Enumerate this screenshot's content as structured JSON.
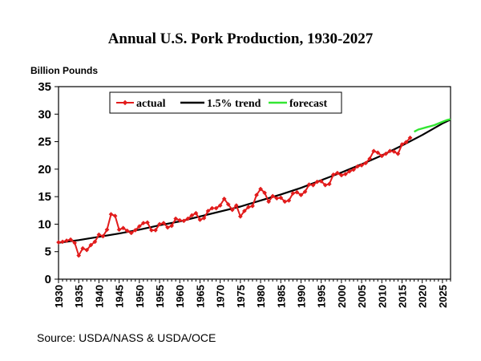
{
  "chart_data": {
    "type": "line",
    "title": "Annual U.S. Pork Production, 1930-2027",
    "ylabel": "Billion  Pounds",
    "xlabel": "",
    "source": "Source: USDA/NASS & USDA/OCE",
    "xlim": [
      1930,
      2027
    ],
    "ylim": [
      0,
      35
    ],
    "y_ticks": [
      0,
      5,
      10,
      15,
      20,
      25,
      30,
      35
    ],
    "x_ticks": [
      1930,
      1935,
      1940,
      1945,
      1950,
      1955,
      1960,
      1965,
      1970,
      1975,
      1980,
      1985,
      1990,
      1995,
      2000,
      2005,
      2010,
      2015,
      2020,
      2025
    ],
    "grid": false,
    "legend": {
      "placement": "top",
      "entries": [
        "actual",
        "1.5% trend",
        "forecast"
      ]
    },
    "series": [
      {
        "name": "actual",
        "color": "#e21c1c",
        "marker": "diamond",
        "x": [
          1930,
          1931,
          1932,
          1933,
          1934,
          1935,
          1936,
          1937,
          1938,
          1939,
          1940,
          1941,
          1942,
          1943,
          1944,
          1945,
          1946,
          1947,
          1948,
          1949,
          1950,
          1951,
          1952,
          1953,
          1954,
          1955,
          1956,
          1957,
          1958,
          1959,
          1960,
          1961,
          1962,
          1963,
          1964,
          1965,
          1966,
          1967,
          1968,
          1969,
          1970,
          1971,
          1972,
          1973,
          1974,
          1975,
          1976,
          1977,
          1978,
          1979,
          1980,
          1981,
          1982,
          1983,
          1984,
          1985,
          1986,
          1987,
          1988,
          1989,
          1990,
          1991,
          1992,
          1993,
          1994,
          1995,
          1996,
          1997,
          1998,
          1999,
          2000,
          2001,
          2002,
          2003,
          2004,
          2005,
          2006,
          2007,
          2008,
          2009,
          2010,
          2011,
          2012,
          2013,
          2014,
          2015,
          2016,
          2017
        ],
        "y": [
          6.7,
          6.8,
          7.0,
          7.2,
          6.6,
          4.3,
          5.6,
          5.3,
          6.2,
          6.8,
          8.1,
          7.8,
          9.0,
          11.8,
          11.5,
          9.0,
          9.3,
          8.8,
          8.4,
          8.9,
          9.6,
          10.2,
          10.3,
          8.9,
          8.9,
          10.0,
          10.2,
          9.4,
          9.7,
          11.0,
          10.7,
          10.6,
          11.0,
          11.6,
          12.0,
          10.8,
          11.1,
          12.4,
          12.9,
          12.9,
          13.4,
          14.6,
          13.6,
          12.6,
          13.4,
          11.4,
          12.4,
          13.1,
          13.3,
          15.3,
          16.4,
          15.7,
          14.1,
          15.1,
          14.7,
          14.8,
          14.1,
          14.3,
          15.6,
          15.8,
          15.3,
          15.9,
          17.2,
          17.1,
          17.7,
          17.8,
          17.1,
          17.3,
          19.0,
          19.3,
          18.9,
          19.1,
          19.6,
          19.9,
          20.5,
          20.7,
          21.1,
          21.9,
          23.3,
          23.0,
          22.4,
          22.8,
          23.3,
          23.2,
          22.8,
          24.5,
          24.9,
          25.7
        ]
      },
      {
        "name": "1.5% trend",
        "color": "#000000",
        "x": [
          1930,
          1935,
          1940,
          1945,
          1950,
          1955,
          1960,
          1965,
          1970,
          1975,
          1980,
          1985,
          1990,
          1995,
          2000,
          2005,
          2010,
          2015,
          2020,
          2025,
          2027
        ],
        "y": [
          6.6,
          7.1,
          7.7,
          8.3,
          9.0,
          9.8,
          10.5,
          11.4,
          12.3,
          13.2,
          14.3,
          15.4,
          16.6,
          18.0,
          19.4,
          20.9,
          22.5,
          24.3,
          26.2,
          28.3,
          29.0
        ]
      },
      {
        "name": "forecast",
        "color": "#33e633",
        "x": [
          2018,
          2019,
          2020,
          2021,
          2022,
          2023,
          2024,
          2025,
          2026,
          2027
        ],
        "y": [
          26.8,
          27.2,
          27.4,
          27.6,
          27.8,
          28.0,
          28.3,
          28.6,
          28.9,
          29.1
        ]
      }
    ]
  }
}
